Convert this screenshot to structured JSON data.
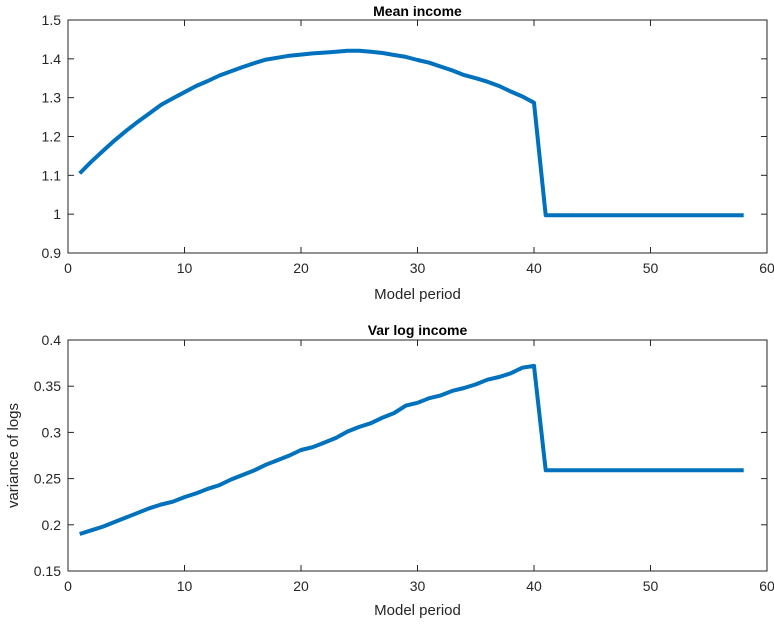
{
  "chart_data": [
    {
      "type": "line",
      "title": "Mean income",
      "xlabel": "Model period",
      "ylabel": "",
      "xlim": [
        0,
        60
      ],
      "ylim": [
        0.9,
        1.5
      ],
      "xticks": [
        0,
        10,
        20,
        30,
        40,
        50,
        60
      ],
      "yticks": [
        0.9,
        1,
        1.1,
        1.2,
        1.3,
        1.4,
        1.5
      ],
      "xtick_labels": [
        "0",
        "10",
        "20",
        "30",
        "40",
        "50",
        "60"
      ],
      "ytick_labels": [
        "0.9",
        "1",
        "1.1",
        "1.2",
        "1.3",
        "1.4",
        "1.5"
      ],
      "grid": false,
      "color": "#0072bd",
      "series": [
        {
          "x": [
            1,
            2,
            3,
            4,
            5,
            6,
            7,
            8,
            9,
            10,
            11,
            12,
            13,
            14,
            15,
            16,
            17,
            18,
            19,
            20,
            21,
            22,
            23,
            24,
            25,
            26,
            27,
            28,
            29,
            30,
            31,
            32,
            33,
            34,
            35,
            36,
            37,
            38,
            39,
            40,
            41,
            42,
            43,
            44,
            45,
            46,
            47,
            48,
            49,
            50,
            51,
            52,
            53,
            54,
            55,
            56,
            57,
            58
          ],
          "values": [
            1.105,
            1.135,
            1.163,
            1.19,
            1.215,
            1.238,
            1.26,
            1.282,
            1.298,
            1.314,
            1.33,
            1.343,
            1.357,
            1.368,
            1.379,
            1.389,
            1.398,
            1.403,
            1.408,
            1.411,
            1.414,
            1.416,
            1.418,
            1.421,
            1.421,
            1.418,
            1.415,
            1.41,
            1.405,
            1.397,
            1.39,
            1.38,
            1.37,
            1.358,
            1.35,
            1.341,
            1.33,
            1.316,
            1.303,
            1.287,
            0.997,
            0.997,
            0.997,
            0.997,
            0.997,
            0.997,
            0.997,
            0.997,
            0.997,
            0.997,
            0.997,
            0.997,
            0.997,
            0.997,
            0.997,
            0.997,
            0.997,
            0.997
          ]
        }
      ]
    },
    {
      "type": "line",
      "title": "Var log income",
      "xlabel": "Model period",
      "ylabel": "variance of logs",
      "xlim": [
        0,
        60
      ],
      "ylim": [
        0.15,
        0.4
      ],
      "xticks": [
        0,
        10,
        20,
        30,
        40,
        50,
        60
      ],
      "yticks": [
        0.15,
        0.2,
        0.25,
        0.3,
        0.35,
        0.4
      ],
      "xtick_labels": [
        "0",
        "10",
        "20",
        "30",
        "40",
        "50",
        "60"
      ],
      "ytick_labels": [
        "0.15",
        "0.2",
        "0.25",
        "0.3",
        "0.35",
        "0.4"
      ],
      "grid": false,
      "color": "#0072bd",
      "series": [
        {
          "x": [
            1,
            2,
            3,
            4,
            5,
            6,
            7,
            8,
            9,
            10,
            11,
            12,
            13,
            14,
            15,
            16,
            17,
            18,
            19,
            20,
            21,
            22,
            23,
            24,
            25,
            26,
            27,
            28,
            29,
            30,
            31,
            32,
            33,
            34,
            35,
            36,
            37,
            38,
            39,
            40,
            41,
            42,
            43,
            44,
            45,
            46,
            47,
            48,
            49,
            50,
            51,
            52,
            53,
            54,
            55,
            56,
            57,
            58
          ],
          "values": [
            0.19,
            0.194,
            0.198,
            0.203,
            0.208,
            0.213,
            0.218,
            0.222,
            0.225,
            0.23,
            0.234,
            0.239,
            0.243,
            0.249,
            0.254,
            0.259,
            0.265,
            0.27,
            0.275,
            0.281,
            0.284,
            0.289,
            0.294,
            0.301,
            0.306,
            0.31,
            0.316,
            0.321,
            0.329,
            0.332,
            0.337,
            0.34,
            0.345,
            0.348,
            0.352,
            0.357,
            0.36,
            0.364,
            0.37,
            0.372,
            0.259,
            0.259,
            0.259,
            0.259,
            0.259,
            0.259,
            0.259,
            0.259,
            0.259,
            0.259,
            0.259,
            0.259,
            0.259,
            0.259,
            0.259,
            0.259,
            0.259,
            0.259
          ]
        }
      ]
    }
  ]
}
